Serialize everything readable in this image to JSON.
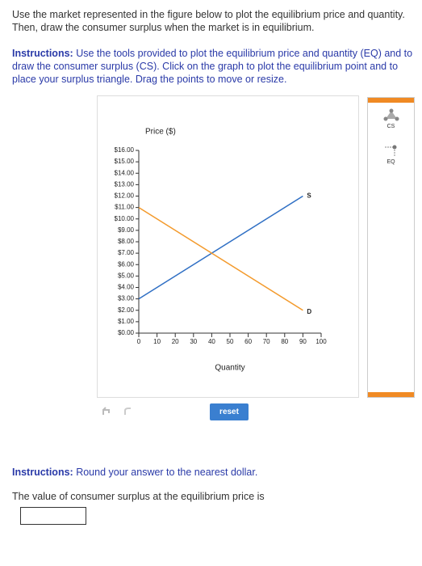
{
  "question": "Use the market represented in the figure below to plot the equilibrium price and quantity. Then, draw the consumer surplus when the market is in equilibrium.",
  "instructions": {
    "label": "Instructions:",
    "text": "Use the tools provided to plot the equilibrium price and quantity (EQ) and to draw the consumer surplus (CS). Click on the graph to plot the equilibrium point and to place your surplus triangle. Drag the points to move or resize."
  },
  "chart_data": {
    "type": "line",
    "y_label": "Price ($)",
    "x_label": "Quantity",
    "x": [
      0,
      90
    ],
    "series": [
      {
        "name": "S",
        "color": "#2f6fc4",
        "values": [
          3,
          12
        ]
      },
      {
        "name": "D",
        "color": "#f39a2c",
        "values": [
          11,
          2
        ]
      }
    ],
    "xlim": [
      0,
      100
    ],
    "xticks": [
      0,
      10,
      20,
      30,
      40,
      50,
      60,
      70,
      80,
      90,
      100
    ],
    "ylim": [
      0,
      16
    ],
    "yticks": [
      {
        "value": 0,
        "label": "$0.00"
      },
      {
        "value": 1,
        "label": "$1.00"
      },
      {
        "value": 2,
        "label": "$2.00"
      },
      {
        "value": 3,
        "label": "$3.00"
      },
      {
        "value": 4,
        "label": "$4.00"
      },
      {
        "value": 5,
        "label": "$5.00"
      },
      {
        "value": 6,
        "label": "$6.00"
      },
      {
        "value": 7,
        "label": "$7.00"
      },
      {
        "value": 8,
        "label": "$8.00"
      },
      {
        "value": 9,
        "label": "$9.00"
      },
      {
        "value": 10,
        "label": "$10.00"
      },
      {
        "value": 11,
        "label": "$11.00"
      },
      {
        "value": 12,
        "label": "$12.00"
      },
      {
        "value": 13,
        "label": "$13.00"
      },
      {
        "value": 14,
        "label": "$14.00"
      },
      {
        "value": 15,
        "label": "$15.00"
      },
      {
        "value": 16,
        "label": "$16.00"
      }
    ]
  },
  "tools": [
    {
      "label": "CS"
    },
    {
      "label": "EQ"
    }
  ],
  "reset_button": "reset",
  "answer_instructions": {
    "label": "Instructions:",
    "text": "Round your answer to the nearest dollar."
  },
  "answer_prompt": "The value of consumer surplus at the equilibrium price is"
}
